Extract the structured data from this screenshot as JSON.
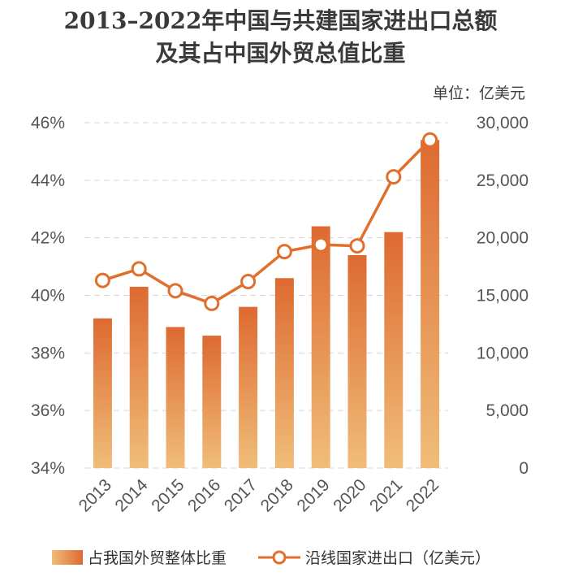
{
  "chart_data": {
    "type": "bar",
    "title_line1": "2013–2022年中国与共建国家进出口总额",
    "title_line2": "及其占中国外贸总值比重",
    "unit_label": "单位：亿美元",
    "categories": [
      "2013",
      "2014",
      "2015",
      "2016",
      "2017",
      "2018",
      "2019",
      "2020",
      "2021",
      "2022"
    ],
    "series": [
      {
        "name": "占我国外贸整体比重",
        "type": "bar",
        "axis": "left",
        "values": [
          39.2,
          40.3,
          38.9,
          38.6,
          39.6,
          40.6,
          42.4,
          41.4,
          42.2,
          45.4
        ]
      },
      {
        "name": "沿线国家进出口（亿美元）",
        "type": "line",
        "axis": "right",
        "values": [
          16300,
          17300,
          15400,
          14300,
          16200,
          18800,
          19400,
          19300,
          25300,
          28500
        ]
      }
    ],
    "y_left": {
      "min": 34,
      "max": 46,
      "ticks": [
        "34%",
        "36%",
        "38%",
        "40%",
        "42%",
        "44%",
        "46%"
      ]
    },
    "y_right": {
      "min": 0,
      "max": 30000,
      "ticks": [
        "0",
        "5,000",
        "10,000",
        "15,000",
        "20,000",
        "25,000",
        "30,000"
      ]
    },
    "grid": "horizontal dashed",
    "legend_position": "bottom",
    "colors": {
      "bar_top": "#dd6a32",
      "bar_bottom": "#f0bd78",
      "line": "#e06f2c",
      "marker_fill": "#ffffff"
    }
  }
}
